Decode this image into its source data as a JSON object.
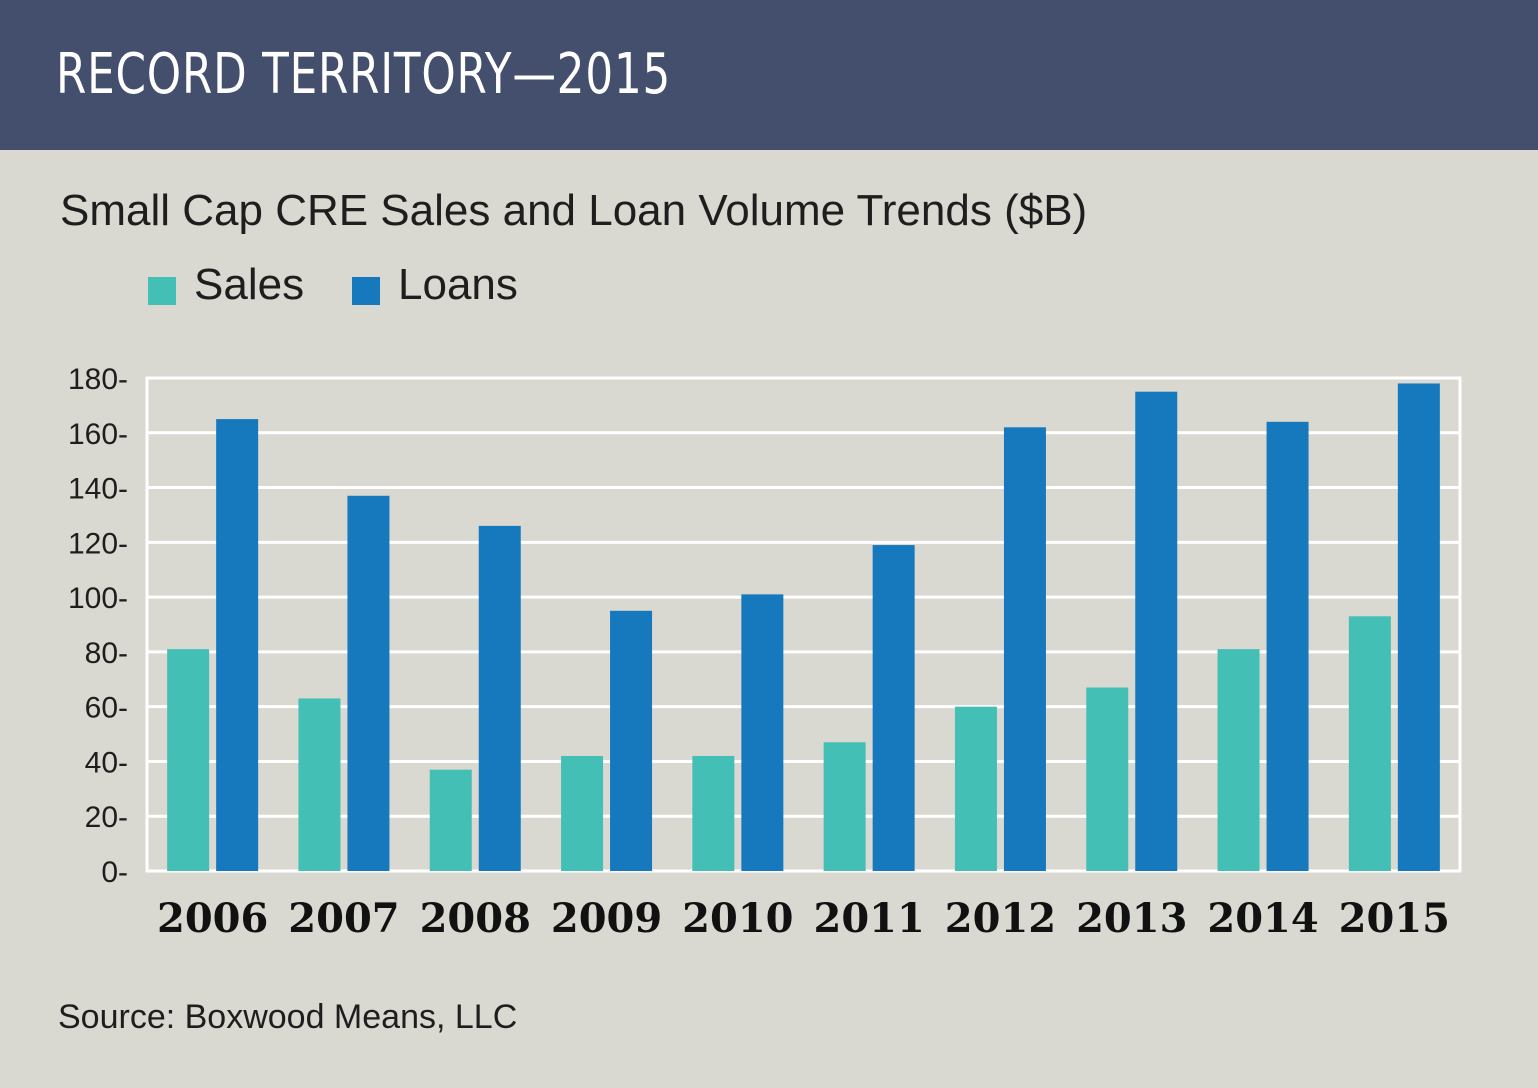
{
  "header": {
    "title": "RECORD TERRITORY—2015"
  },
  "chart_data": {
    "type": "bar",
    "title": "Small Cap CRE Sales and Loan Volume Trends ($B)",
    "xlabel": "",
    "ylabel": "",
    "categories": [
      "2006",
      "2007",
      "2008",
      "2009",
      "2010",
      "2011",
      "2012",
      "2013",
      "2014",
      "2015"
    ],
    "series": [
      {
        "name": "Sales",
        "color": "#43bfb6",
        "values": [
          81,
          63,
          37,
          42,
          42,
          47,
          60,
          67,
          81,
          93
        ]
      },
      {
        "name": "Loans",
        "color": "#1679bd",
        "values": [
          165,
          137,
          126,
          95,
          101,
          119,
          162,
          175,
          164,
          178
        ]
      }
    ],
    "yticks": [
      "0",
      "20",
      "40",
      "60",
      "80",
      "100",
      "120",
      "140",
      "160",
      "180"
    ],
    "ylim": [
      0,
      180
    ],
    "grid": true,
    "legend_position": "top-left"
  },
  "source": "Source: Boxwood Means, LLC"
}
